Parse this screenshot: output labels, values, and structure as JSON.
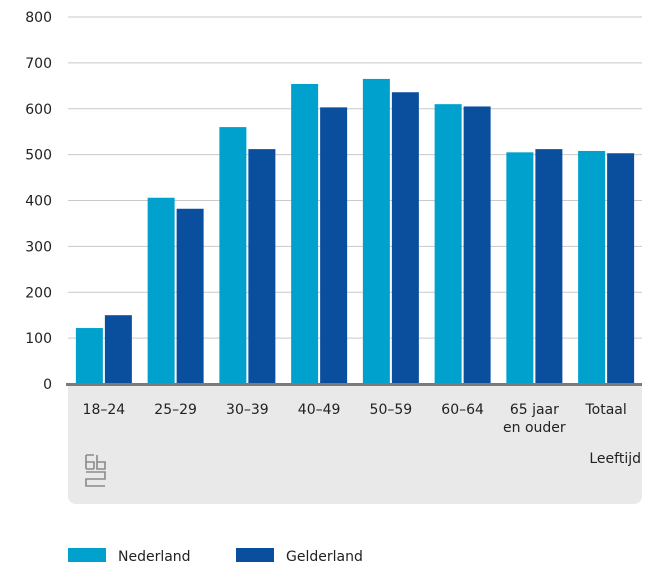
{
  "colors": {
    "nederland": "#00A1CD",
    "gelderland": "#0A4F9E",
    "grid": "#c9c9c9",
    "axis": "#7a7a7a",
    "panel": "#e9e9e9",
    "logo": "#8a8a8a"
  },
  "chart_data": {
    "type": "bar",
    "categories": [
      "18–24",
      "25–29",
      "30–39",
      "40–49",
      "50–59",
      "60–64",
      "65 jaar en ouder",
      "Totaal"
    ],
    "category_lines": [
      [
        "18–24"
      ],
      [
        "25–29"
      ],
      [
        "30–39"
      ],
      [
        "40–49"
      ],
      [
        "50–59"
      ],
      [
        "60–64"
      ],
      [
        "65 jaar",
        "en ouder"
      ],
      [
        "Totaal"
      ]
    ],
    "series": [
      {
        "name": "Nederland",
        "values": [
          122,
          406,
          560,
          654,
          665,
          610,
          505,
          508
        ]
      },
      {
        "name": "Gelderland",
        "values": [
          150,
          382,
          512,
          603,
          636,
          605,
          512,
          503
        ]
      }
    ],
    "ylim": [
      0,
      800
    ],
    "yticks": [
      0,
      100,
      200,
      300,
      400,
      500,
      600,
      700,
      800
    ],
    "xlabel": "Leeftijd",
    "ylabel": "",
    "grid": true,
    "legend_position": "bottom-left"
  },
  "logo": {
    "name": "cbs-logo"
  }
}
